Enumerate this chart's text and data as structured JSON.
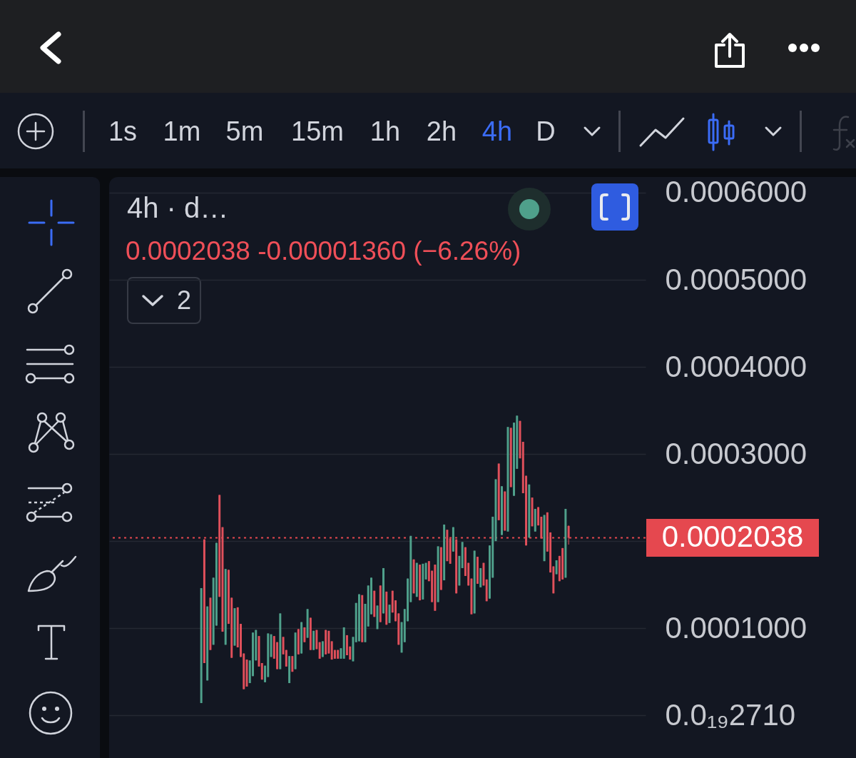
{
  "chart_data": {
    "type": "candlestick",
    "title": "4h · d…",
    "categories": [
      null,
      null,
      null,
      null,
      null,
      null,
      null,
      null,
      null,
      null,
      null,
      null,
      null,
      null,
      null,
      null,
      null,
      null,
      null,
      null,
      null,
      null,
      null,
      null,
      null,
      null,
      null,
      null,
      null,
      null,
      null,
      null,
      null,
      null,
      null,
      null,
      null,
      null,
      null,
      null,
      null,
      null,
      null,
      null,
      null,
      null,
      null,
      null,
      null,
      null,
      null,
      null,
      null,
      null,
      null,
      null,
      null,
      null,
      null,
      null,
      null,
      null,
      null,
      null,
      null,
      null,
      null,
      null,
      null,
      null,
      null,
      null,
      null,
      null,
      null,
      null,
      null,
      null,
      null,
      null,
      null,
      null,
      null,
      null,
      null,
      null,
      null,
      null,
      null,
      null,
      null,
      null,
      null,
      null,
      null,
      null,
      null,
      null,
      null,
      null,
      null,
      null,
      null,
      null,
      null,
      null,
      null,
      null,
      null,
      null,
      null,
      null,
      null,
      null,
      null,
      null,
      null,
      null,
      null,
      null,
      null,
      null,
      null,
      null,
      null,
      null,
      null,
      null,
      null,
      null,
      null,
      null,
      null,
      null,
      null,
      null,
      null,
      null,
      null,
      null,
      null,
      null,
      null,
      null,
      null,
      null,
      null,
      null,
      null,
      null,
      null,
      null,
      null,
      null,
      null,
      null,
      null,
      null,
      null,
      null,
      null,
      null,
      null,
      null,
      null,
      null,
      null,
      null,
      null,
      null,
      null,
      null,
      null,
      null,
      null,
      null,
      null
    ],
    "ohlc": [
      null,
      null,
      null,
      null,
      null,
      null,
      null,
      null,
      null,
      null,
      null,
      null,
      null,
      null,
      null,
      null,
      null,
      null,
      null,
      null,
      null,
      null,
      null,
      null,
      null,
      null,
      null,
      null,
      null,
      null,
      [
        1.4e-05,
        0.000146,
        1.4e-05,
        0.000146
      ],
      [
        0.000202,
        0.000202,
        6e-05,
        6e-05
      ],
      [
        4e-05,
        0.000125,
        4e-05,
        0.000125
      ],
      [
        0.000135,
        0.000135,
        7.5e-05,
        7.5e-05
      ],
      [
        8.1e-05,
        0.000158,
        8.1e-05,
        0.000158
      ],
      [
        0.000103,
        0.000198,
        0.000103,
        0.000198
      ],
      [
        0.000253,
        0.000253,
        0.000136,
        0.000136
      ],
      [
        0.000216,
        0.000216,
        9.6e-05,
        9.6e-05
      ],
      [
        8.1e-05,
        0.000168,
        8.1e-05,
        0.000168
      ],
      [
        0.000167,
        0.000167,
        0.000105,
        0.000105
      ],
      [
        0.000135,
        0.000135,
        6.6e-05,
        6.6e-05
      ],
      [
        8e-05,
        0.000123,
        8e-05,
        0.000123
      ],
      [
        0.000124,
        0.000124,
        7.8e-05,
        7.8e-05
      ],
      [
        0.000105,
        0.000105,
        6.7e-05,
        6.7e-05
      ],
      [
        7.1e-05,
        7.1e-05,
        3e-05,
        3e-05
      ],
      [
        6.4e-05,
        6.4e-05,
        3.3e-05,
        3.3e-05
      ],
      [
        3.7e-05,
        6.3e-05,
        3.7e-05,
        6.3e-05
      ],
      [
        4.5e-05,
        9.5e-05,
        4.5e-05,
        9.5e-05
      ],
      [
        6.3e-05,
        9.8e-05,
        6.3e-05,
        9.8e-05
      ],
      [
        9.1e-05,
        9.1e-05,
        5.6e-05,
        5.6e-05
      ],
      [
        6e-05,
        6e-05,
        4.1e-05,
        4.1e-05
      ],
      [
        3.8e-05,
        5.7e-05,
        3.8e-05,
        5.7e-05
      ],
      [
        4.4e-05,
        9.4e-05,
        4.4e-05,
        9.4e-05
      ],
      [
        6.7e-05,
        9.3e-05,
        6.7e-05,
        9.3e-05
      ],
      [
        9.1e-05,
        9.1e-05,
        6.5e-05,
        6.5e-05
      ],
      [
        8.4e-05,
        8.4e-05,
        5.3e-05,
        5.3e-05
      ],
      [
        5.3e-05,
        0.000117,
        5.3e-05,
        0.000117
      ],
      [
        9e-05,
        9e-05,
        7e-05,
        7e-05
      ],
      [
        7.5e-05,
        7.5e-05,
        5.6e-05,
        5.6e-05
      ],
      [
        3.7e-05,
        6.8e-05,
        3.7e-05,
        6.8e-05
      ],
      [
        6.8e-05,
        6.8e-05,
        5e-05,
        5e-05
      ],
      [
        5.3e-05,
        9.5e-05,
        5.3e-05,
        9.5e-05
      ],
      [
        9.9e-05,
        9.9e-05,
        7e-05,
        7e-05
      ],
      [
        7.1e-05,
        0.000107,
        7.1e-05,
        0.000107
      ],
      [
        0.000101,
        0.000101,
        8.4e-05,
        8.4e-05
      ],
      [
        8.9e-05,
        0.000122,
        8.9e-05,
        0.000122
      ],
      [
        0.000112,
        0.000112,
        7.5e-05,
        7.5e-05
      ],
      [
        7.5e-05,
        9.7e-05,
        7.5e-05,
        9.7e-05
      ],
      [
        9.8e-05,
        9.8e-05,
        7.6e-05,
        7.6e-05
      ],
      [
        8.4e-05,
        8.4e-05,
        6.5e-05,
        6.5e-05
      ],
      [
        6.7e-05,
        8.5e-05,
        6.7e-05,
        8.5e-05
      ],
      [
        9.8e-05,
        9.8e-05,
        7e-05,
        7e-05
      ],
      [
        9.7e-05,
        9.7e-05,
        7.1e-05,
        7.1e-05
      ],
      [
        8.5e-05,
        8.5e-05,
        6.4e-05,
        6.4e-05
      ],
      [
        7.5e-05,
        7.5e-05,
        6.5e-05,
        6.5e-05
      ],
      [
        7.5e-05,
        7.5e-05,
        6.5e-05,
        6.5e-05
      ],
      [
        6.5e-05,
        7.7e-05,
        6.5e-05,
        7.7e-05
      ],
      [
        6.5e-05,
        0.000101,
        6.5e-05,
        0.000101
      ],
      [
        9.2e-05,
        9.2e-05,
        6.9e-05,
        6.9e-05
      ],
      [
        7.9e-05,
        7.9e-05,
        6.4e-05,
        6.4e-05
      ],
      [
        6.2e-05,
        9e-05,
        6.2e-05,
        9e-05
      ],
      [
        8.4e-05,
        0.000129,
        8.4e-05,
        0.000129
      ],
      [
        8.5e-05,
        0.000139,
        8.5e-05,
        0.000139
      ],
      [
        0.000138,
        0.000138,
        8.4e-05,
        8.4e-05
      ],
      [
        8.4e-05,
        0.000128,
        8.4e-05,
        0.000128
      ],
      [
        0.000102,
        0.000149,
        0.000102,
        0.000149
      ],
      [
        0.000116,
        0.000158,
        0.000116,
        0.000158
      ],
      [
        0.000143,
        0.000143,
        0.000113,
        0.000113
      ],
      [
        9.9e-05,
        0.000126,
        9.9e-05,
        0.000126
      ],
      [
        0.000149,
        0.000149,
        0.000107,
        0.000107
      ],
      [
        0.000117,
        0.000169,
        0.000117,
        0.000169
      ],
      [
        0.000142,
        0.000142,
        0.000104,
        0.000104
      ],
      [
        0.000106,
        0.000127,
        0.000106,
        0.000127
      ],
      [
        0.000143,
        0.000143,
        0.000118,
        0.000118
      ],
      [
        0.000132,
        0.000132,
        0.000108,
        0.000108
      ],
      [
        0.000117,
        0.000117,
        8.1e-05,
        8.1e-05
      ],
      [
        7.2e-05,
        0.000107,
        7.2e-05,
        0.000107
      ],
      [
        8.4e-05,
        0.000122,
        8.4e-05,
        0.000122
      ],
      [
        0.000108,
        0.000157,
        0.000108,
        0.000157
      ],
      [
        0.00013,
        0.000206,
        0.00013,
        0.000206
      ],
      [
        0.000179,
        0.000179,
        0.00014,
        0.00014
      ],
      [
        0.000136,
        0.000175,
        0.000136,
        0.000175
      ],
      [
        0.000173,
        0.000173,
        0.000132,
        0.000132
      ],
      [
        0.000133,
        0.000174,
        0.000133,
        0.000174
      ],
      [
        0.000156,
        0.000175,
        0.000156,
        0.000175
      ],
      [
        0.000177,
        0.000177,
        0.000154,
        0.000154
      ],
      [
        0.000166,
        0.000166,
        0.00013,
        0.00013
      ],
      [
        0.000173,
        0.000173,
        0.00012,
        0.00012
      ],
      [
        0.00013,
        0.000194,
        0.00013,
        0.000194
      ],
      [
        0.000193,
        0.000193,
        0.000144,
        0.000144
      ],
      [
        0.000155,
        0.000219,
        0.000155,
        0.000219
      ],
      [
        0.000213,
        0.000213,
        0.000177,
        0.000177
      ],
      [
        0.000203,
        0.000203,
        0.000174,
        0.000174
      ],
      [
        0.000188,
        0.000216,
        0.000188,
        0.000216
      ],
      [
        0.000202,
        0.000202,
        0.00014,
        0.00014
      ],
      [
        0.000149,
        0.000183,
        0.000149,
        0.000183
      ],
      [
        0.000169,
        0.000199,
        0.000169,
        0.000199
      ],
      [
        0.000193,
        0.000193,
        0.00016,
        0.00016
      ],
      [
        0.000175,
        0.000175,
        0.000149,
        0.000149
      ],
      [
        0.000157,
        0.000157,
        0.000116,
        0.000116
      ],
      [
        0.000117,
        0.000189,
        0.000117,
        0.000189
      ],
      [
        0.000182,
        0.000182,
        0.000151,
        0.000151
      ],
      [
        0.000147,
        0.000169,
        0.000147,
        0.000169
      ],
      [
        0.000175,
        0.000175,
        0.000149,
        0.000149
      ],
      [
        0.000156,
        0.000156,
        0.000131,
        0.000131
      ],
      [
        0.000134,
        0.000195,
        0.000134,
        0.000195
      ],
      [
        0.000158,
        0.000228,
        0.000158,
        0.000228
      ],
      [
        0.0002,
        0.000271,
        0.0002,
        0.000271
      ],
      [
        0.000289,
        0.000289,
        0.000224,
        0.000224
      ],
      [
        0.000207,
        0.000263,
        0.000207,
        0.000263
      ],
      [
        0.000257,
        0.000257,
        0.000212,
        0.000212
      ],
      [
        0.000211,
        0.000331,
        0.000211,
        0.000331
      ],
      [
        0.00033,
        0.00033,
        0.000262,
        0.000262
      ],
      [
        0.000252,
        0.000336,
        0.000252,
        0.000336
      ],
      [
        0.000283,
        0.000344,
        0.000283,
        0.000344
      ],
      [
        0.000338,
        0.000338,
        0.000295,
        0.000295
      ],
      [
        0.000314,
        0.000314,
        0.000255,
        0.000255
      ],
      [
        0.000275,
        0.000275,
        0.000195,
        0.000195
      ],
      [
        0.000204,
        0.000265,
        0.000204,
        0.000265
      ],
      [
        0.00025,
        0.00025,
        0.000217,
        0.000217
      ],
      [
        0.000211,
        0.000237,
        0.000211,
        0.000237
      ],
      [
        0.000239,
        0.000239,
        0.000218,
        0.000218
      ],
      [
        0.000228,
        0.000228,
        0.000203,
        0.000203
      ],
      [
        0.000177,
        0.00023,
        0.000177,
        0.00023
      ],
      [
        0.000233,
        0.000233,
        0.000188,
        0.000188
      ],
      [
        0.00021,
        0.00021,
        0.000164,
        0.000164
      ],
      [
        0.000171,
        0.000171,
        0.00014,
        0.00014
      ],
      [
        0.000162,
        0.000178,
        0.000162,
        0.000178
      ],
      [
        0.000183,
        0.000183,
        0.000154,
        0.000154
      ],
      [
        0.000192,
        0.000192,
        0.000156,
        0.000156
      ],
      [
        0.000158,
        0.000237,
        0.000158,
        0.000237
      ],
      [
        0.0002174,
        0.000218,
        0.000196,
        0.0002038
      ],
      null,
      null,
      null,
      null,
      null,
      null,
      null,
      null,
      null,
      null,
      null,
      null,
      null,
      null,
      null,
      null,
      null,
      null,
      null,
      null,
      null,
      null,
      null,
      null,
      null
    ],
    "colors": [
      null,
      null,
      null,
      null,
      null,
      null,
      null,
      null,
      null,
      null,
      null,
      null,
      null,
      null,
      null,
      null,
      null,
      null,
      null,
      null,
      null,
      null,
      null,
      null,
      null,
      null,
      null,
      null,
      null,
      null,
      "#4fa08b",
      "#e0505b",
      "#4fa08b",
      "#e0505b",
      "#4fa08b",
      "#4fa08b",
      "#e0505b",
      "#e0505b",
      "#4fa08b",
      "#e0505b",
      "#e0505b",
      "#4fa08b",
      "#e0505b",
      "#e0505b",
      "#e0505b",
      "#e0505b",
      "#4fa08b",
      "#4fa08b",
      "#4fa08b",
      "#e0505b",
      "#e0505b",
      "#4fa08b",
      "#4fa08b",
      "#4fa08b",
      "#e0505b",
      "#e0505b",
      "#4fa08b",
      "#e0505b",
      "#e0505b",
      "#4fa08b",
      "#e0505b",
      "#4fa08b",
      "#e0505b",
      "#4fa08b",
      "#e0505b",
      "#4fa08b",
      "#e0505b",
      "#4fa08b",
      "#e0505b",
      "#e0505b",
      "#4fa08b",
      "#e0505b",
      "#e0505b",
      "#e0505b",
      "#e0505b",
      "#e0505b",
      "#4fa08b",
      "#4fa08b",
      "#e0505b",
      "#e0505b",
      "#4fa08b",
      "#4fa08b",
      "#4fa08b",
      "#e0505b",
      "#4fa08b",
      "#4fa08b",
      "#4fa08b",
      "#e0505b",
      "#4fa08b",
      "#e0505b",
      "#4fa08b",
      "#e0505b",
      "#4fa08b",
      "#e0505b",
      "#e0505b",
      "#e0505b",
      "#4fa08b",
      "#4fa08b",
      "#4fa08b",
      "#4fa08b",
      "#e0505b",
      "#4fa08b",
      "#e0505b",
      "#4fa08b",
      "#4fa08b",
      "#e0505b",
      "#e0505b",
      "#e0505b",
      "#4fa08b",
      "#e0505b",
      "#4fa08b",
      "#e0505b",
      "#e0505b",
      "#4fa08b",
      "#e0505b",
      "#4fa08b",
      "#4fa08b",
      "#e0505b",
      "#e0505b",
      "#e0505b",
      "#4fa08b",
      "#e0505b",
      "#4fa08b",
      "#e0505b",
      "#e0505b",
      "#4fa08b",
      "#4fa08b",
      "#4fa08b",
      "#e0505b",
      "#4fa08b",
      "#e0505b",
      "#4fa08b",
      "#e0505b",
      "#4fa08b",
      "#4fa08b",
      "#e0505b",
      "#e0505b",
      "#e0505b",
      "#4fa08b",
      "#e0505b",
      "#4fa08b",
      "#e0505b",
      "#e0505b",
      "#4fa08b",
      "#e0505b",
      "#e0505b",
      "#e0505b",
      "#4fa08b",
      "#e0505b",
      "#e0505b",
      "#4fa08b",
      "#e0505b",
      null,
      null,
      null,
      null,
      null,
      null,
      null,
      null,
      null,
      null,
      null,
      null,
      null,
      null,
      null,
      null,
      null,
      null,
      null,
      null,
      null,
      null,
      null,
      null,
      null
    ],
    "ylim": [
      -4.9e-05,
      0.000618
    ],
    "yticks": [
      {
        "value": 0.0006,
        "label": "0.0006000"
      },
      {
        "value": 0.0005,
        "label": "0.0005000"
      },
      {
        "value": 0.0004,
        "label": "0.0004000"
      },
      {
        "value": 0.0003,
        "label": "0.0003000"
      },
      {
        "value": 0.0002,
        "label": null
      },
      {
        "value": 0.0001,
        "label": "0.0001000"
      },
      {
        "value": 2.71e-20,
        "label": "0.0₁₉2710"
      }
    ],
    "grid": "y",
    "ref_lines": [
      {
        "axis": "y",
        "value": 0.0002038,
        "label": "0.0002038",
        "color": "#e5484f",
        "line_style": "dotted"
      }
    ],
    "annotations": [
      "1s",
      "1m",
      "5m",
      "15m",
      "1h",
      "2h",
      "4h",
      "D",
      "0.0002038  -0.00001360 (−6.26%)",
      "2"
    ]
  }
}
